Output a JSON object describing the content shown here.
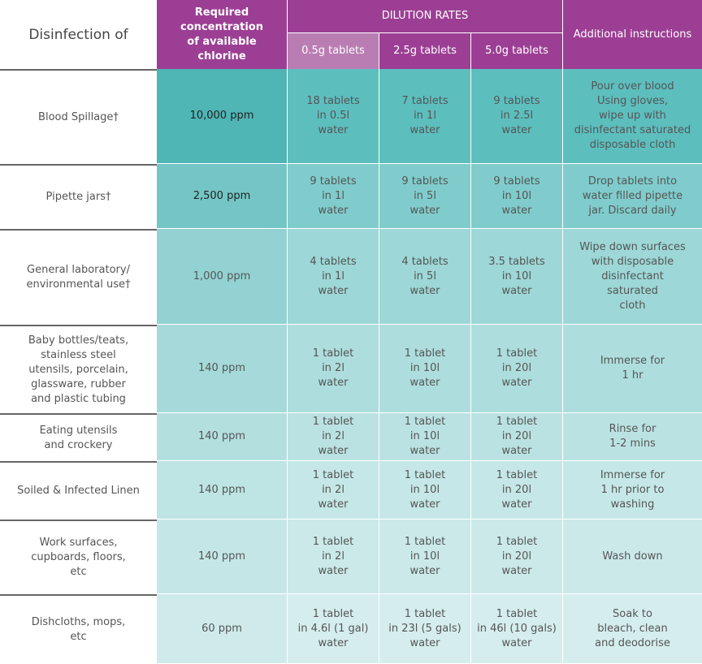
{
  "header": {
    "title": "Disinfection of",
    "concentration": [
      "Required",
      "concentration",
      "of available",
      "chlorine"
    ],
    "dilution": "DILUTION RATES",
    "tablets": [
      "0.5g tablets",
      "2.5g tablets",
      "5.0g tablets"
    ],
    "additional": "Additional instructions"
  },
  "rows": [
    {
      "item": [
        "Blood Spillage†"
      ],
      "concentration": "10,000 ppm",
      "rates": [
        [
          "18 tablets",
          "in 0.5l",
          "water"
        ],
        [
          "7 tablets",
          "in 1l",
          "water"
        ],
        [
          "9 tablets",
          "in 2.5l",
          "water"
        ]
      ],
      "instructions": [
        "Pour over blood",
        "Using gloves,",
        "wipe up with",
        "disinfectant saturated",
        "disposable cloth"
      ]
    },
    {
      "item": [
        "Pipette jars†"
      ],
      "concentration": "2,500 ppm",
      "rates": [
        [
          "9 tablets",
          "in 1l",
          "water"
        ],
        [
          "9 tablets",
          "in 5l",
          "water"
        ],
        [
          "9 tablets",
          "in 10l",
          "water"
        ]
      ],
      "instructions": [
        "Drop tablets into",
        "water filled pipette",
        "jar. Discard daily"
      ]
    },
    {
      "item": [
        "General laboratory/",
        "environmental use†"
      ],
      "concentration": "1,000 ppm",
      "rates": [
        [
          "4 tablets",
          "in 1l",
          "water"
        ],
        [
          "4 tablets",
          "in 5l",
          "water"
        ],
        [
          "3.5 tablets",
          "in 10l",
          "water"
        ]
      ],
      "instructions": [
        "Wipe down surfaces",
        "with disposable",
        "disinfectant",
        "saturated",
        "cloth"
      ]
    },
    {
      "item": [
        "Baby bottles/teats,",
        "stainless steel",
        "utensils, porcelain,",
        "glassware, rubber",
        "and plastic tubing"
      ],
      "concentration": "140 ppm",
      "rates": [
        [
          "1 tablet",
          "in 2l",
          "water"
        ],
        [
          "1 tablet",
          "in 10l",
          "water"
        ],
        [
          "1 tablet",
          "in 20l",
          "water"
        ]
      ],
      "instructions": [
        "Immerse for",
        "1 hr"
      ]
    },
    {
      "item": [
        "Eating utensils",
        "and crockery"
      ],
      "concentration": "140 ppm",
      "rates": [
        [
          "1 tablet",
          "in 2l",
          "water"
        ],
        [
          "1 tablet",
          "in 10l",
          "water"
        ],
        [
          "1 tablet",
          "in 20l",
          "water"
        ]
      ],
      "instructions": [
        "Rinse for",
        "1-2 mins"
      ]
    },
    {
      "item": [
        "Soiled & Infected Linen"
      ],
      "concentration": "140 ppm",
      "rates": [
        [
          "1 tablet",
          "in 2l",
          "water"
        ],
        [
          "1 tablet",
          "in 10l",
          "water"
        ],
        [
          "1 tablet",
          "in 20l",
          "water"
        ]
      ],
      "instructions": [
        "Immerse for",
        "1 hr prior to",
        "washing"
      ]
    },
    {
      "item": [
        "Work surfaces,",
        "cupboards, floors,",
        "etc"
      ],
      "concentration": "140 ppm",
      "rates": [
        [
          "1 tablet",
          "in 2l",
          "water"
        ],
        [
          "1 tablet",
          "in 10l",
          "water"
        ],
        [
          "1 tablet",
          "in 20l",
          "water"
        ]
      ],
      "instructions": [
        "Wash down"
      ]
    },
    {
      "item": [
        "Dishcloths, mops,",
        "etc"
      ],
      "concentration": "60 ppm",
      "rates": [
        [
          "1 tablet",
          "in 4.6l (1 gal)",
          "water"
        ],
        [
          "1 tablet",
          "in 23l (5 gals)",
          "water"
        ],
        [
          "1 tablet",
          "in 46l (10 gals)",
          "water"
        ]
      ],
      "instructions": [
        "Soak to",
        "bleach, clean",
        "and deodorise"
      ]
    }
  ]
}
